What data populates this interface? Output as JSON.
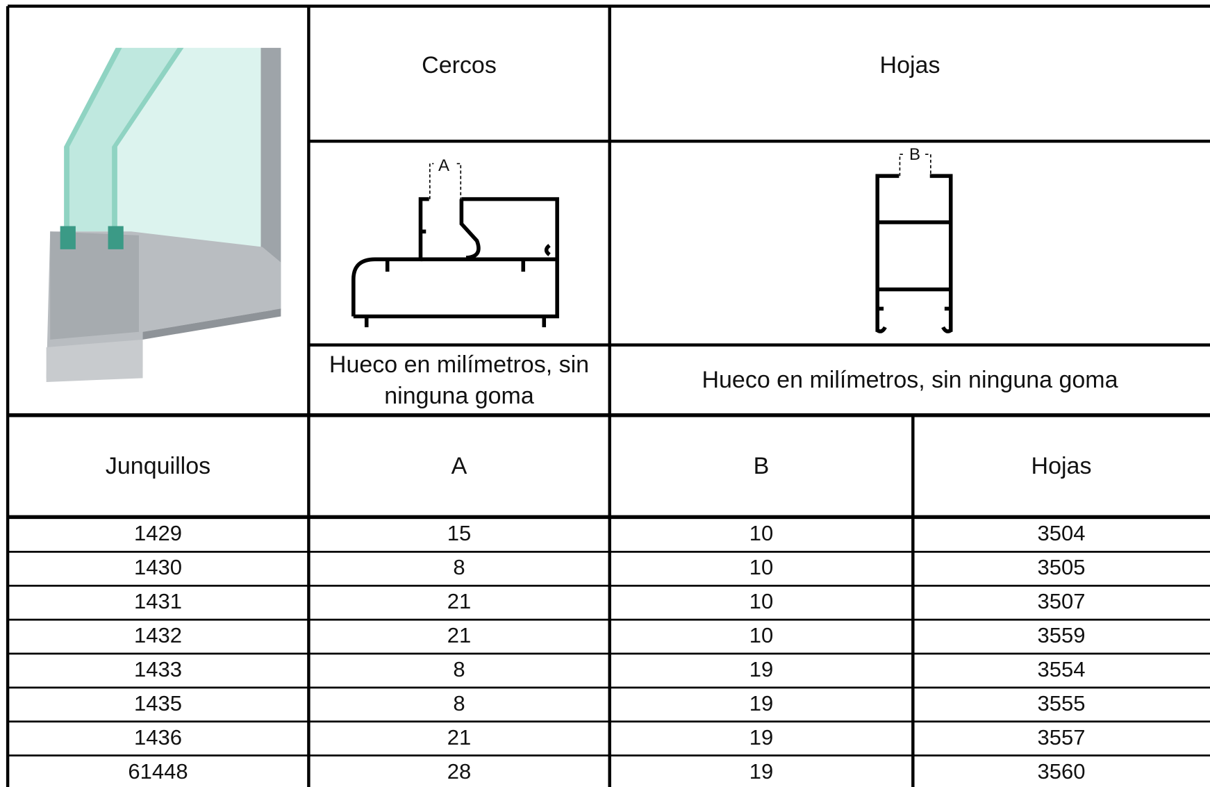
{
  "header": {
    "frames": "Cercos",
    "sashes": "Hojas",
    "frame_profile_label": "A",
    "sash_profile_label": "B",
    "frame_note": "Hueco en milímetros, sin ninguna goma",
    "sash_note": "Hueco en milímetros, sin ninguna goma"
  },
  "table": {
    "columns": [
      "Junquillos",
      "A",
      "B",
      "Hojas"
    ],
    "rows": [
      [
        1429,
        15,
        10,
        3504
      ],
      [
        1430,
        8,
        10,
        3505
      ],
      [
        1431,
        21,
        10,
        3507
      ],
      [
        1432,
        21,
        10,
        3559
      ],
      [
        1433,
        8,
        19,
        3554
      ],
      [
        1435,
        8,
        19,
        3555
      ],
      [
        1436,
        21,
        19,
        3557
      ],
      [
        61448,
        28,
        19,
        3560
      ]
    ]
  }
}
